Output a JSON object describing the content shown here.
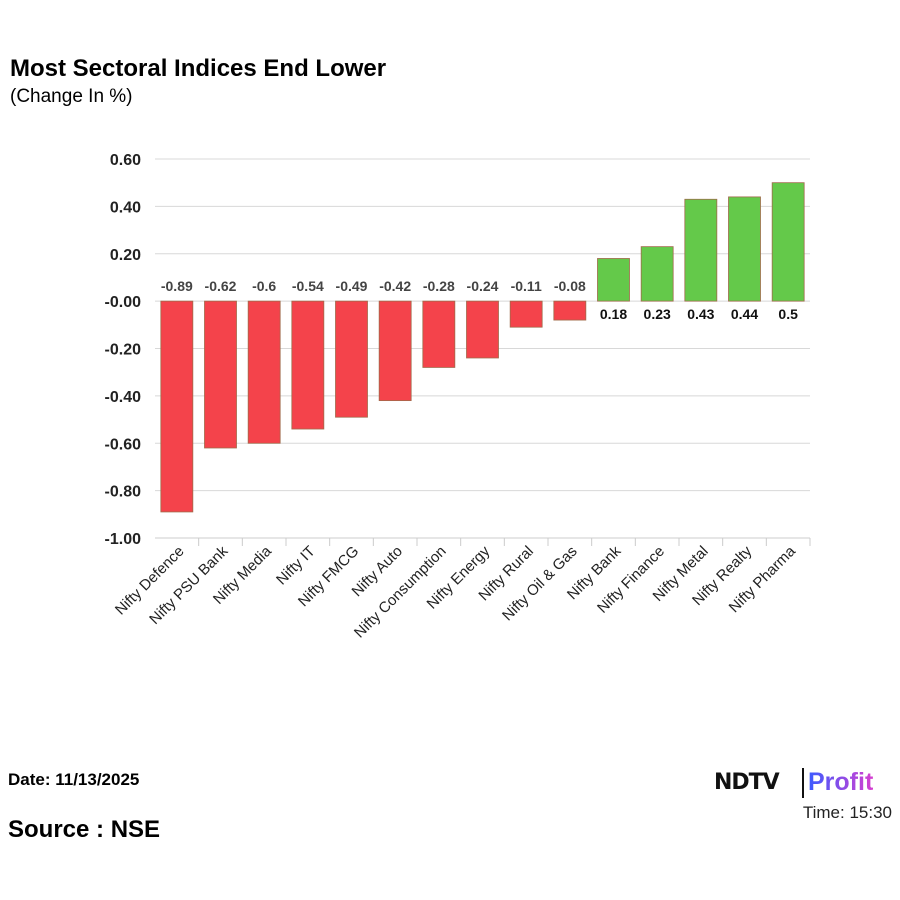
{
  "chart_data": {
    "type": "bar",
    "title": "Most Sectoral Indices End Lower",
    "subtitle": "(Change In %)",
    "categories": [
      "Nifty Defence",
      "Nifty PSU Bank",
      "Nifty Media",
      "Nifty IT",
      "Nifty FMCG",
      "Nifty Auto",
      "Nifty Consumption",
      "Nifty Energy",
      "Nifty Rural",
      "Nifty Oil & Gas",
      "Nifty Bank",
      "Nifty Finance",
      "Nifty Metal",
      "Nifty Realty",
      "Nifty Pharma"
    ],
    "values": [
      -0.89,
      -0.62,
      -0.6,
      -0.54,
      -0.49,
      -0.42,
      -0.28,
      -0.24,
      -0.11,
      -0.08,
      0.18,
      0.23,
      0.43,
      0.44,
      0.5
    ],
    "data_labels": [
      "-0.89",
      "-0.62",
      "-0.6",
      "-0.54",
      "-0.49",
      "-0.42",
      "-0.28",
      "-0.24",
      "-0.11",
      "-0.08",
      "0.18",
      "0.23",
      "0.43",
      "0.44",
      "0.5"
    ],
    "ylim": [
      -1.0,
      0.6
    ],
    "yticks": [
      "0.60",
      "0.40",
      "0.20",
      "-0.00",
      "-0.20",
      "-0.40",
      "-0.60",
      "-0.80",
      "-1.00"
    ],
    "grid": true,
    "colors": {
      "negative": "#f4434b",
      "positive": "#64c94a"
    }
  },
  "footer": {
    "date": "Date: 11/13/2025",
    "source": "Source : NSE",
    "time": "Time: 15:30",
    "logo_text": "NDTV Profit"
  }
}
